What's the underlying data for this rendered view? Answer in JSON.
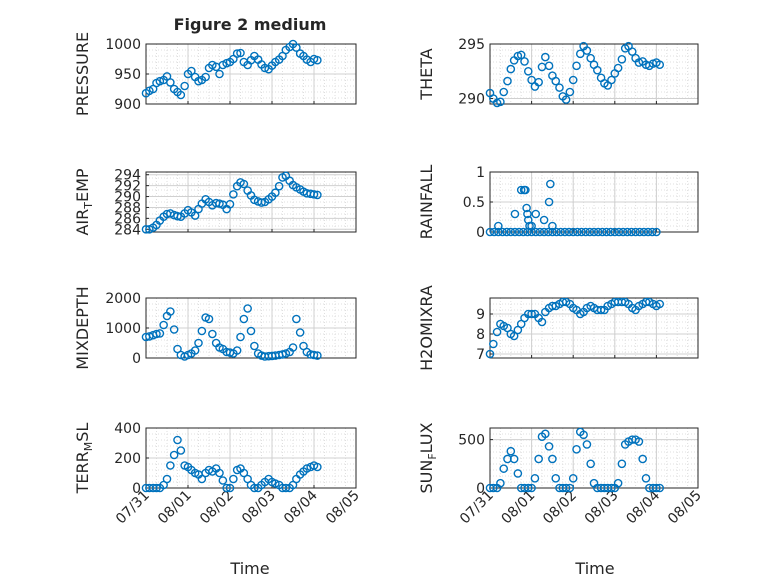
{
  "figure": {
    "title": "Figure 2 medium",
    "x_axis_label": "Time",
    "x_tick_labels": [
      "07/31",
      "08/01",
      "08/02",
      "08/03",
      "08/04",
      "08/05"
    ]
  },
  "colors": {
    "marker": "#0072BD",
    "axis": "#262626",
    "grid": "#dfdfdf"
  },
  "chart_data": [
    {
      "type": "scatter",
      "ylabel": "PRESSURE",
      "ylim": [
        900,
        1000
      ],
      "yticks": [
        900,
        950,
        1000
      ],
      "grid": true,
      "marker": "circle-open",
      "x": [
        0.0,
        0.08,
        0.17,
        0.25,
        0.33,
        0.42,
        0.5,
        0.58,
        0.67,
        0.75,
        0.83,
        0.92,
        1.0,
        1.08,
        1.17,
        1.25,
        1.33,
        1.42,
        1.5,
        1.58,
        1.67,
        1.75,
        1.83,
        1.92,
        2.0,
        2.08,
        2.17,
        2.25,
        2.33,
        2.42,
        2.5,
        2.58,
        2.67,
        2.75,
        2.83,
        2.92,
        3.0,
        3.08,
        3.17,
        3.25,
        3.33,
        3.42,
        3.5,
        3.58,
        3.67,
        3.75,
        3.83,
        3.92,
        4.0,
        4.08
      ],
      "y": [
        918,
        922,
        925,
        935,
        938,
        940,
        946,
        936,
        925,
        920,
        915,
        930,
        950,
        955,
        945,
        938,
        940,
        945,
        960,
        965,
        962,
        950,
        965,
        968,
        970,
        975,
        984,
        985,
        970,
        965,
        973,
        980,
        974,
        966,
        960,
        958,
        964,
        970,
        974,
        980,
        990,
        995,
        1000,
        994,
        984,
        980,
        974,
        970,
        975,
        973
      ]
    },
    {
      "type": "scatter",
      "ylabel": "THETA",
      "ylim": [
        289.5,
        295
      ],
      "yticks": [
        290,
        295
      ],
      "grid": true,
      "marker": "circle-open",
      "x": [
        0.0,
        0.08,
        0.17,
        0.25,
        0.33,
        0.42,
        0.5,
        0.58,
        0.67,
        0.75,
        0.83,
        0.92,
        1.0,
        1.08,
        1.17,
        1.25,
        1.33,
        1.42,
        1.5,
        1.58,
        1.67,
        1.75,
        1.83,
        1.92,
        2.0,
        2.08,
        2.17,
        2.25,
        2.33,
        2.42,
        2.5,
        2.58,
        2.67,
        2.75,
        2.83,
        2.92,
        3.0,
        3.08,
        3.17,
        3.25,
        3.33,
        3.42,
        3.5,
        3.58,
        3.67,
        3.75,
        3.83,
        3.92,
        4.0,
        4.08
      ],
      "y": [
        290.5,
        290.0,
        289.6,
        289.7,
        290.6,
        291.6,
        292.7,
        293.5,
        293.9,
        294.0,
        293.4,
        292.5,
        291.7,
        291.1,
        291.5,
        292.9,
        293.8,
        293.0,
        292.1,
        291.6,
        291.0,
        290.2,
        289.9,
        290.6,
        291.7,
        293.0,
        294.1,
        294.8,
        294.4,
        293.7,
        293.1,
        292.6,
        291.9,
        291.4,
        291.2,
        291.7,
        292.3,
        292.8,
        293.6,
        294.6,
        294.8,
        294.3,
        293.7,
        293.3,
        293.4,
        293.1,
        293.0,
        293.2,
        293.3,
        293.1
      ]
    },
    {
      "type": "scatter",
      "ylabel": "AIR_TEMP",
      "ylim": [
        283.5,
        294.5
      ],
      "yticks": [
        284,
        286,
        288,
        290,
        292,
        294
      ],
      "grid": true,
      "marker": "circle-open",
      "x": [
        0.0,
        0.08,
        0.17,
        0.25,
        0.33,
        0.42,
        0.5,
        0.58,
        0.67,
        0.75,
        0.83,
        0.92,
        1.0,
        1.08,
        1.17,
        1.25,
        1.33,
        1.42,
        1.5,
        1.58,
        1.67,
        1.75,
        1.83,
        1.92,
        2.0,
        2.08,
        2.17,
        2.25,
        2.33,
        2.42,
        2.5,
        2.58,
        2.67,
        2.75,
        2.83,
        2.92,
        3.0,
        3.08,
        3.17,
        3.25,
        3.33,
        3.42,
        3.5,
        3.58,
        3.67,
        3.75,
        3.83,
        3.92,
        4.0,
        4.08
      ],
      "y": [
        284.0,
        284.0,
        284.3,
        284.8,
        285.6,
        286.3,
        286.8,
        286.9,
        286.6,
        286.4,
        286.3,
        286.9,
        287.5,
        287.1,
        286.5,
        287.7,
        288.7,
        289.5,
        289.0,
        288.4,
        288.8,
        288.7,
        288.5,
        287.7,
        288.6,
        290.4,
        291.9,
        292.6,
        292.3,
        291.1,
        290.2,
        289.4,
        289.1,
        288.9,
        289.0,
        289.5,
        290.0,
        290.7,
        291.9,
        293.5,
        293.8,
        292.9,
        292.1,
        291.7,
        291.3,
        290.9,
        290.6,
        290.5,
        290.4,
        290.3
      ]
    },
    {
      "type": "scatter",
      "ylabel": "RAINFALL",
      "ylim": [
        0,
        1
      ],
      "yticks": [
        0,
        0.5,
        1
      ],
      "grid": true,
      "marker": "circle-open",
      "x": [
        0.0,
        0.1,
        0.2,
        0.3,
        0.4,
        0.5,
        0.6,
        0.7,
        0.8,
        0.9,
        1.0,
        1.1,
        1.2,
        1.3,
        1.4,
        1.5,
        1.6,
        1.7,
        1.8,
        1.9,
        2.0,
        2.1,
        2.2,
        2.3,
        2.4,
        2.5,
        2.6,
        2.7,
        2.8,
        2.9,
        3.0,
        3.1,
        3.2,
        3.3,
        3.4,
        3.5,
        3.6,
        3.7,
        3.8,
        3.9,
        4.0,
        0.2,
        0.6,
        0.75,
        0.82,
        0.85,
        0.88,
        0.9,
        0.92,
        0.95,
        1.0,
        1.1,
        1.3,
        1.42,
        1.45,
        1.5
      ],
      "y": [
        0,
        0,
        0,
        0,
        0,
        0,
        0,
        0,
        0,
        0,
        0,
        0,
        0,
        0,
        0,
        0,
        0,
        0,
        0,
        0,
        0,
        0,
        0,
        0,
        0,
        0,
        0,
        0,
        0,
        0,
        0,
        0,
        0,
        0,
        0,
        0,
        0,
        0,
        0,
        0,
        0,
        0.1,
        0.3,
        0.7,
        0.7,
        0.7,
        0.4,
        0.3,
        0.2,
        0.1,
        0.1,
        0.3,
        0.2,
        0.5,
        0.8,
        0.1
      ]
    },
    {
      "type": "scatter",
      "ylabel": "MIXDEPTH",
      "ylim": [
        0,
        2000
      ],
      "yticks": [
        0,
        1000,
        2000
      ],
      "grid": true,
      "marker": "circle-open",
      "x": [
        0.0,
        0.08,
        0.17,
        0.25,
        0.33,
        0.42,
        0.5,
        0.58,
        0.67,
        0.75,
        0.83,
        0.92,
        1.0,
        1.08,
        1.17,
        1.25,
        1.33,
        1.42,
        1.5,
        1.58,
        1.67,
        1.75,
        1.83,
        1.92,
        2.0,
        2.08,
        2.17,
        2.25,
        2.33,
        2.42,
        2.5,
        2.58,
        2.67,
        2.75,
        2.83,
        2.92,
        3.0,
        3.08,
        3.17,
        3.25,
        3.33,
        3.42,
        3.5,
        3.58,
        3.67,
        3.75,
        3.83,
        3.92,
        4.0,
        4.08
      ],
      "y": [
        700,
        720,
        760,
        800,
        820,
        1100,
        1400,
        1550,
        950,
        300,
        100,
        50,
        100,
        150,
        250,
        500,
        900,
        1350,
        1300,
        800,
        500,
        350,
        300,
        200,
        180,
        150,
        250,
        700,
        1300,
        1650,
        900,
        400,
        150,
        80,
        50,
        60,
        70,
        80,
        100,
        120,
        150,
        200,
        350,
        1300,
        850,
        400,
        200,
        120,
        100,
        80
      ]
    },
    {
      "type": "scatter",
      "ylabel": "H2OMIXRA",
      "ylim": [
        6.8,
        9.8
      ],
      "yticks": [
        7,
        8,
        9
      ],
      "grid": true,
      "marker": "circle-open",
      "x": [
        0.0,
        0.08,
        0.17,
        0.25,
        0.33,
        0.42,
        0.5,
        0.58,
        0.67,
        0.75,
        0.83,
        0.92,
        1.0,
        1.08,
        1.17,
        1.25,
        1.33,
        1.42,
        1.5,
        1.58,
        1.67,
        1.75,
        1.83,
        1.92,
        2.0,
        2.08,
        2.17,
        2.25,
        2.33,
        2.42,
        2.5,
        2.58,
        2.67,
        2.75,
        2.83,
        2.92,
        3.0,
        3.08,
        3.17,
        3.25,
        3.33,
        3.42,
        3.5,
        3.58,
        3.67,
        3.75,
        3.83,
        3.92,
        4.0,
        4.08
      ],
      "y": [
        7.0,
        7.5,
        8.1,
        8.5,
        8.4,
        8.3,
        8.0,
        7.9,
        8.2,
        8.5,
        8.8,
        9.0,
        9.0,
        9.0,
        8.8,
        8.6,
        9.1,
        9.3,
        9.4,
        9.4,
        9.5,
        9.6,
        9.6,
        9.5,
        9.3,
        9.2,
        9.0,
        9.1,
        9.3,
        9.4,
        9.3,
        9.2,
        9.2,
        9.2,
        9.4,
        9.5,
        9.6,
        9.6,
        9.6,
        9.6,
        9.5,
        9.3,
        9.2,
        9.4,
        9.5,
        9.6,
        9.6,
        9.5,
        9.4,
        9.5
      ]
    },
    {
      "type": "scatter",
      "ylabel": "TERR_MSL",
      "ylim": [
        0,
        400
      ],
      "yticks": [
        0,
        200,
        400
      ],
      "grid": true,
      "marker": "circle-open",
      "x": [
        0.0,
        0.08,
        0.17,
        0.25,
        0.33,
        0.42,
        0.5,
        0.58,
        0.67,
        0.75,
        0.83,
        0.92,
        1.0,
        1.08,
        1.17,
        1.25,
        1.33,
        1.42,
        1.5,
        1.58,
        1.67,
        1.75,
        1.83,
        1.92,
        2.0,
        2.08,
        2.17,
        2.25,
        2.33,
        2.42,
        2.5,
        2.58,
        2.67,
        2.75,
        2.83,
        2.92,
        3.0,
        3.08,
        3.17,
        3.25,
        3.33,
        3.42,
        3.5,
        3.58,
        3.67,
        3.75,
        3.83,
        3.92,
        4.0,
        4.08
      ],
      "y": [
        0,
        0,
        0,
        0,
        0,
        20,
        60,
        150,
        220,
        320,
        250,
        150,
        140,
        120,
        100,
        90,
        60,
        100,
        120,
        110,
        130,
        100,
        50,
        0,
        0,
        60,
        120,
        130,
        100,
        60,
        20,
        0,
        0,
        20,
        40,
        60,
        40,
        30,
        20,
        0,
        0,
        0,
        20,
        60,
        90,
        110,
        130,
        140,
        150,
        140
      ]
    },
    {
      "type": "scatter",
      "ylabel": "SUN_FLUX",
      "ylim": [
        0,
        620
      ],
      "yticks": [
        0,
        500
      ],
      "grid": true,
      "marker": "circle-open",
      "x": [
        0.0,
        0.08,
        0.17,
        0.25,
        0.33,
        0.42,
        0.5,
        0.58,
        0.67,
        0.75,
        0.83,
        0.92,
        1.0,
        1.08,
        1.17,
        1.25,
        1.33,
        1.42,
        1.5,
        1.58,
        1.67,
        1.75,
        1.83,
        1.92,
        2.0,
        2.08,
        2.17,
        2.25,
        2.33,
        2.42,
        2.5,
        2.58,
        2.67,
        2.75,
        2.83,
        2.92,
        3.0,
        3.08,
        3.17,
        3.25,
        3.33,
        3.42,
        3.5,
        3.58,
        3.67,
        3.75,
        3.83,
        3.92,
        4.0,
        4.08
      ],
      "y": [
        0,
        0,
        0,
        50,
        200,
        300,
        380,
        300,
        150,
        0,
        0,
        0,
        0,
        100,
        300,
        530,
        560,
        430,
        300,
        100,
        0,
        0,
        0,
        0,
        100,
        400,
        580,
        550,
        450,
        250,
        50,
        0,
        0,
        0,
        0,
        0,
        0,
        50,
        250,
        450,
        480,
        500,
        500,
        480,
        300,
        100,
        0,
        0,
        0,
        0
      ]
    }
  ]
}
